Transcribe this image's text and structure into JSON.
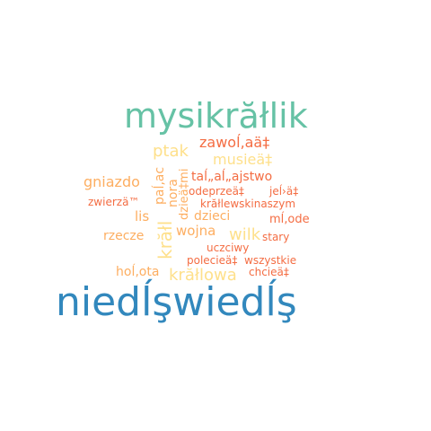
{
  "colors": {
    "background": "#ffffff",
    "teal": "#66c2a5",
    "blue": "#3288bd",
    "yellow": "#fee08b",
    "light_orange": "#fdae61",
    "orange": "#f46d43"
  },
  "words": [
    {
      "text": "mysikrăłlik",
      "color": "teal"
    },
    {
      "text": "niedĺşwiedĺş",
      "color": "blue"
    },
    {
      "text": "ptak",
      "color": "yellow"
    },
    {
      "text": "zawoĺ‚aä‡",
      "color": "orange"
    },
    {
      "text": "musieä‡",
      "color": "yellow"
    },
    {
      "text": "gniazdo",
      "color": "light_orange"
    },
    {
      "text": "paĺ‚ac",
      "color": "light_orange"
    },
    {
      "text": "nora",
      "color": "light_orange"
    },
    {
      "text": "dzieä‡mi",
      "color": "light_orange"
    },
    {
      "text": "taĺ„aĺ„ajstwo",
      "color": "orange"
    },
    {
      "text": "odeprzeä‡",
      "color": "orange"
    },
    {
      "text": "jeĺ›ä‡",
      "color": "orange"
    },
    {
      "text": "zwierzä™",
      "color": "orange"
    },
    {
      "text": "krăłlewskinaszym",
      "color": "orange"
    },
    {
      "text": "lis",
      "color": "light_orange"
    },
    {
      "text": "dzieci",
      "color": "light_orange"
    },
    {
      "text": "mĺ‚ode",
      "color": "orange"
    },
    {
      "text": "krăłl",
      "color": "yellow"
    },
    {
      "text": "wojna",
      "color": "light_orange"
    },
    {
      "text": "wilk",
      "color": "yellow"
    },
    {
      "text": "rzecze",
      "color": "light_orange"
    },
    {
      "text": "stary",
      "color": "orange"
    },
    {
      "text": "uczciwy",
      "color": "orange"
    },
    {
      "text": "polecieä‡",
      "color": "orange"
    },
    {
      "text": "wszystkie",
      "color": "orange"
    },
    {
      "text": "hoĺ‚ota",
      "color": "light_orange"
    },
    {
      "text": "krăłlowa",
      "color": "yellow"
    },
    {
      "text": "chcieä‡",
      "color": "orange"
    }
  ]
}
